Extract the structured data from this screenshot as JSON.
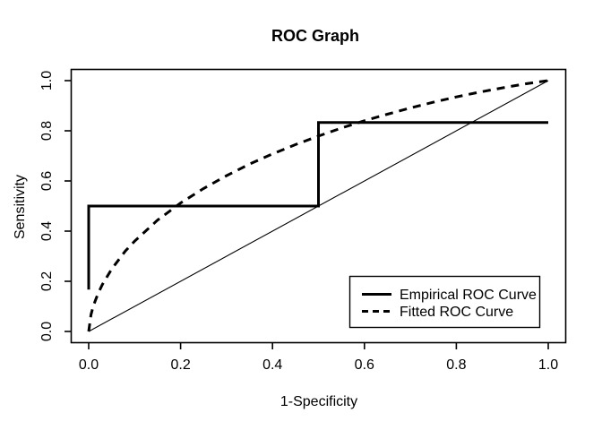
{
  "window": {
    "background_color": "#ffffff",
    "line_color": "#000000"
  },
  "title": "ROC Graph",
  "axes": {
    "x_label": "1-Specificity",
    "y_label": "Sensitivity",
    "x_ticks": [
      "0.0",
      "0.2",
      "0.4",
      "0.6",
      "0.8",
      "1.0"
    ],
    "y_ticks": [
      "0.0",
      "0.2",
      "0.4",
      "0.6",
      "0.8",
      "1.0"
    ]
  },
  "legend": {
    "position": "lower-right",
    "items": [
      {
        "label": "Empirical ROC Curve",
        "line_style": "solid",
        "line_width": "thick"
      },
      {
        "label": "Fitted ROC Curve",
        "line_style": "dashed",
        "line_width": "thick"
      }
    ]
  },
  "chart_data": {
    "type": "line",
    "title": "ROC Graph",
    "xlabel": "1-Specificity",
    "ylabel": "Sensitivity",
    "xlim": [
      0,
      1
    ],
    "ylim": [
      0,
      1
    ],
    "grid": false,
    "legend_position": "lower-right",
    "series": [
      {
        "name": "Empirical ROC Curve",
        "line_style": "solid",
        "line_width": "thick",
        "in_legend": true,
        "points": [
          [
            0,
            0.167
          ],
          [
            0,
            0.5
          ],
          [
            0.5,
            0.5
          ],
          [
            0.5,
            0.833
          ],
          [
            1,
            0.833
          ]
        ]
      },
      {
        "name": "Fitted ROC Curve",
        "line_style": "dashed",
        "line_width": "thick",
        "in_legend": true,
        "points": [
          [
            0,
            0
          ],
          [
            0.005,
            0.067
          ],
          [
            0.01,
            0.101
          ],
          [
            0.02,
            0.15
          ],
          [
            0.03,
            0.188
          ],
          [
            0.05,
            0.249
          ],
          [
            0.08,
            0.321
          ],
          [
            0.1,
            0.36
          ],
          [
            0.15,
            0.444
          ],
          [
            0.2,
            0.512
          ],
          [
            0.25,
            0.57
          ],
          [
            0.3,
            0.621
          ],
          [
            0.35,
            0.667
          ],
          [
            0.4,
            0.708
          ],
          [
            0.45,
            0.745
          ],
          [
            0.5,
            0.779
          ],
          [
            0.55,
            0.811
          ],
          [
            0.6,
            0.84
          ],
          [
            0.65,
            0.866
          ],
          [
            0.7,
            0.891
          ],
          [
            0.75,
            0.914
          ],
          [
            0.8,
            0.935
          ],
          [
            0.85,
            0.954
          ],
          [
            0.9,
            0.971
          ],
          [
            0.95,
            0.987
          ],
          [
            0.98,
            0.995
          ],
          [
            1,
            1
          ]
        ]
      },
      {
        "name": "Chance Diagonal",
        "line_style": "solid",
        "line_width": "thin",
        "in_legend": false,
        "points": [
          [
            0,
            0
          ],
          [
            1,
            1
          ]
        ]
      }
    ]
  }
}
